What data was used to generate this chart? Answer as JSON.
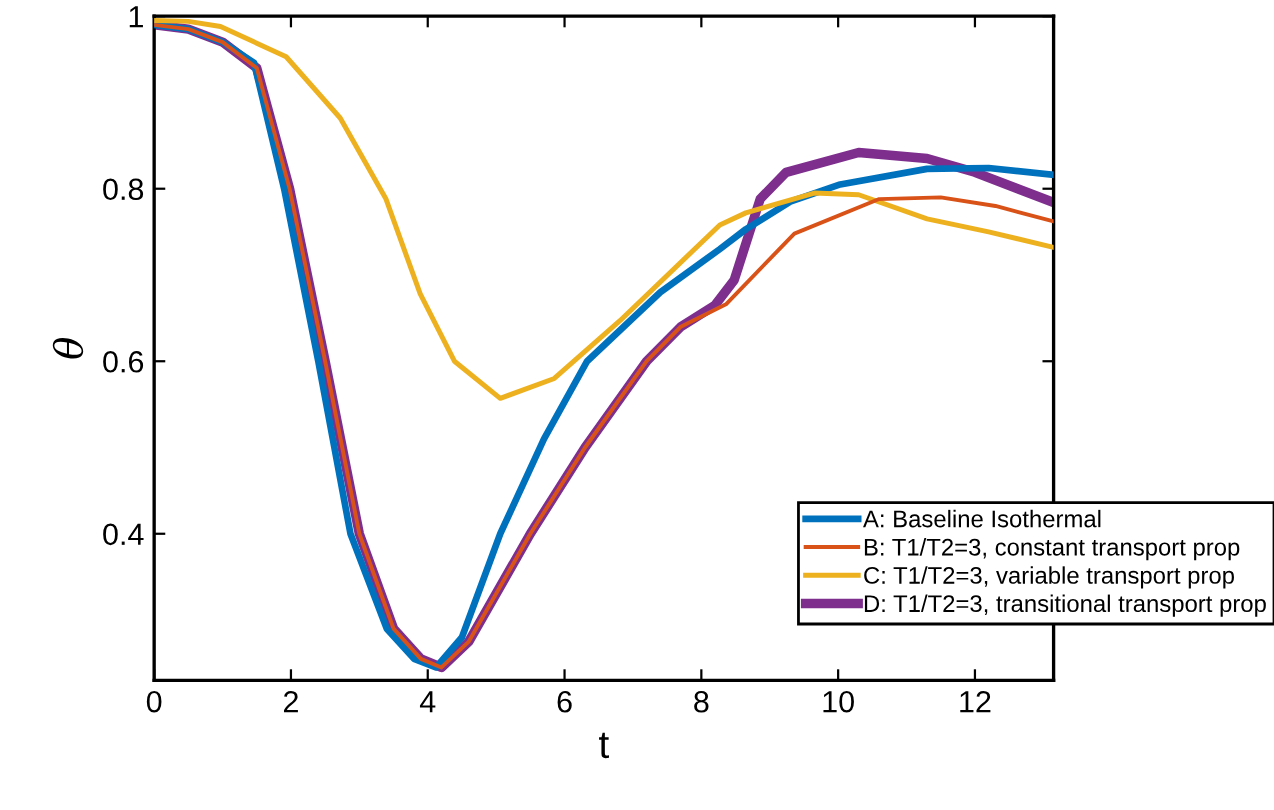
{
  "chart_data": {
    "type": "line",
    "xlabel": "t",
    "ylabel": "θ",
    "xlim": [
      0,
      13.15
    ],
    "ylim": [
      0.23,
      1
    ],
    "xticks": [
      0,
      2,
      4,
      6,
      8,
      10,
      12
    ],
    "yticks": [
      0.4,
      0.6,
      0.8,
      1
    ],
    "grid": false,
    "legend": "bottom right",
    "marker": "none",
    "line_style": "solid",
    "series": [
      {
        "name": "A: Baseline Isothermal",
        "color": "#0072bd",
        "x": [
          0,
          0.5,
          1.0,
          1.46,
          1.9,
          2.4,
          2.87,
          3.4,
          3.8,
          4.12,
          4.5,
          5.06,
          5.7,
          6.33,
          7.4,
          8.27,
          8.65,
          9.3,
          10.03,
          11.3,
          12.2,
          13.15
        ],
        "values": [
          0.99,
          0.985,
          0.97,
          0.946,
          0.8,
          0.6,
          0.4,
          0.29,
          0.255,
          0.245,
          0.28,
          0.4,
          0.51,
          0.6,
          0.68,
          0.73,
          0.753,
          0.785,
          0.805,
          0.823,
          0.824,
          0.816
        ]
      },
      {
        "name": "B: T1/T2=3, constant transport prop",
        "color": "#d95319",
        "x": [
          0,
          0.5,
          1.0,
          1.5,
          1.98,
          2.5,
          3.0,
          3.5,
          3.9,
          4.2,
          4.6,
          5.5,
          6.3,
          7.2,
          7.7,
          8.36,
          9.36,
          10.6,
          11.5,
          12.3,
          13.15
        ],
        "values": [
          0.99,
          0.985,
          0.97,
          0.94,
          0.8,
          0.6,
          0.4,
          0.29,
          0.255,
          0.245,
          0.275,
          0.4,
          0.5,
          0.6,
          0.64,
          0.666,
          0.748,
          0.788,
          0.79,
          0.78,
          0.762
        ]
      },
      {
        "name": "C: T1/T2=3, variable transport prop",
        "color": "#edb120",
        "x": [
          0,
          0.5,
          0.97,
          1.93,
          2.72,
          3.39,
          3.89,
          4.39,
          5.06,
          5.85,
          6.81,
          8.27,
          8.65,
          9.65,
          10.3,
          11.3,
          12.2,
          13.15
        ],
        "values": [
          0.995,
          0.994,
          0.988,
          0.953,
          0.882,
          0.788,
          0.678,
          0.6,
          0.557,
          0.58,
          0.647,
          0.758,
          0.772,
          0.795,
          0.793,
          0.765,
          0.75,
          0.732
        ]
      },
      {
        "name": "D: T1/T2=3, transitional transport prop",
        "color": "#7e2f8e",
        "x": [
          0,
          0.5,
          1.0,
          1.5,
          1.98,
          2.5,
          3.0,
          3.5,
          3.9,
          4.2,
          4.6,
          5.5,
          6.3,
          7.2,
          7.7,
          8.2,
          8.48,
          8.86,
          9.24,
          10.3,
          11.3,
          12.0,
          13.15
        ],
        "values": [
          0.99,
          0.985,
          0.97,
          0.94,
          0.8,
          0.6,
          0.4,
          0.29,
          0.255,
          0.245,
          0.275,
          0.4,
          0.5,
          0.6,
          0.64,
          0.665,
          0.694,
          0.788,
          0.819,
          0.842,
          0.835,
          0.819,
          0.784
        ]
      }
    ]
  }
}
